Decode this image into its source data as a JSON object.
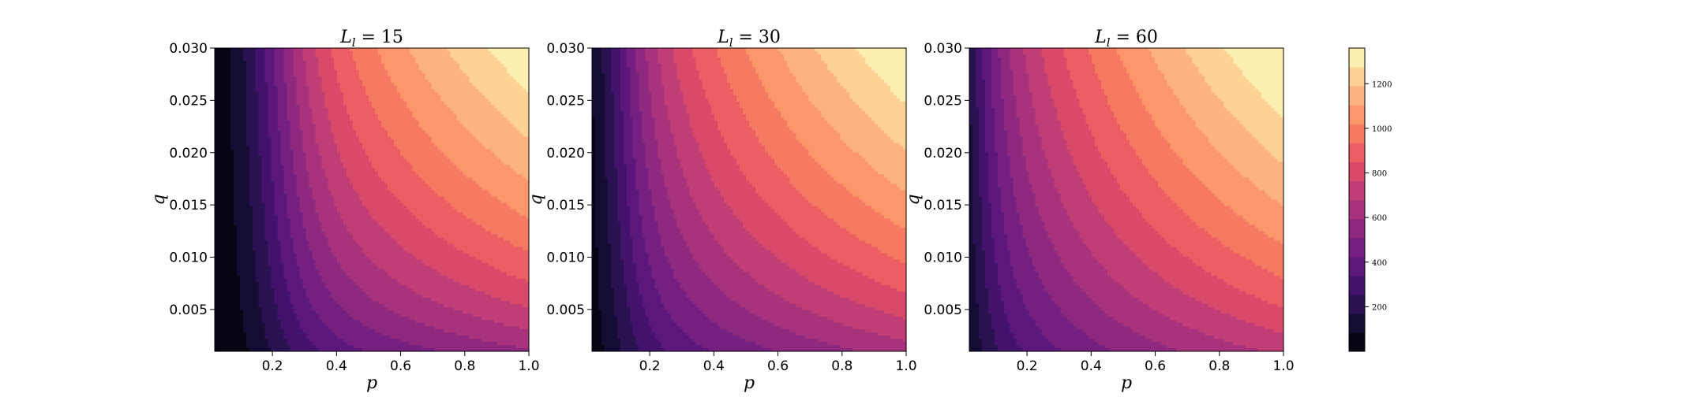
{
  "chart_data": {
    "type": "heatmap",
    "style": "filled-contour",
    "colormap": "magma",
    "shared_colorbar": {
      "range": [
        0,
        1360
      ],
      "levels": 16,
      "ticks": [
        200,
        400,
        600,
        800,
        1000,
        1200
      ],
      "tick_labels": [
        "200",
        "400",
        "600",
        "800",
        "1000",
        "1200"
      ]
    },
    "panels": [
      {
        "title_sym": "L",
        "title_sub": "l",
        "title_eq": " = 15",
        "xlabel": "p",
        "ylabel": "q",
        "xlim": [
          0.02,
          1.0
        ],
        "ylim": [
          0.001,
          0.03
        ],
        "xticks": [
          0.2,
          0.4,
          0.6,
          0.8,
          1.0
        ],
        "xtick_labels": [
          "0.2",
          "0.4",
          "0.6",
          "0.8",
          "1.0"
        ],
        "yticks": [
          0.005,
          0.01,
          0.015,
          0.02,
          0.025,
          0.03
        ],
        "ytick_labels": [
          "0.005",
          "0.010",
          "0.015",
          "0.020",
          "0.025",
          "0.030"
        ],
        "model": {
          "p0": 0.17,
          "w": 0.075,
          "q_shift": 0.0035,
          "vmax": 1350
        }
      },
      {
        "title_sym": "L",
        "title_sub": "l",
        "title_eq": " = 30",
        "xlabel": "p",
        "ylabel": "q",
        "xlim": [
          0.02,
          1.0
        ],
        "ylim": [
          0.001,
          0.03
        ],
        "xticks": [
          0.2,
          0.4,
          0.6,
          0.8,
          1.0
        ],
        "xtick_labels": [
          "0.2",
          "0.4",
          "0.6",
          "0.8",
          "1.0"
        ],
        "yticks": [
          0.005,
          0.01,
          0.015,
          0.02,
          0.025,
          0.03
        ],
        "ytick_labels": [
          "0.005",
          "0.010",
          "0.015",
          "0.020",
          "0.025",
          "0.030"
        ],
        "model": {
          "p0": 0.07,
          "w": 0.06,
          "q_shift": 0.0045,
          "vmax": 1370
        }
      },
      {
        "title_sym": "L",
        "title_sub": "l",
        "title_eq": " = 60",
        "xlabel": "p",
        "ylabel": "q",
        "xlim": [
          0.02,
          1.0
        ],
        "ylim": [
          0.001,
          0.03
        ],
        "xticks": [
          0.2,
          0.4,
          0.6,
          0.8,
          1.0
        ],
        "xtick_labels": [
          "0.2",
          "0.4",
          "0.6",
          "0.8",
          "1.0"
        ],
        "yticks": [
          0.005,
          0.01,
          0.015,
          0.02,
          0.025,
          0.03
        ],
        "ytick_labels": [
          "0.005",
          "0.010",
          "0.015",
          "0.020",
          "0.025",
          "0.030"
        ],
        "model": {
          "p0": 0.0,
          "w": 0.045,
          "q_shift": 0.006,
          "vmax": 1390
        }
      }
    ]
  }
}
